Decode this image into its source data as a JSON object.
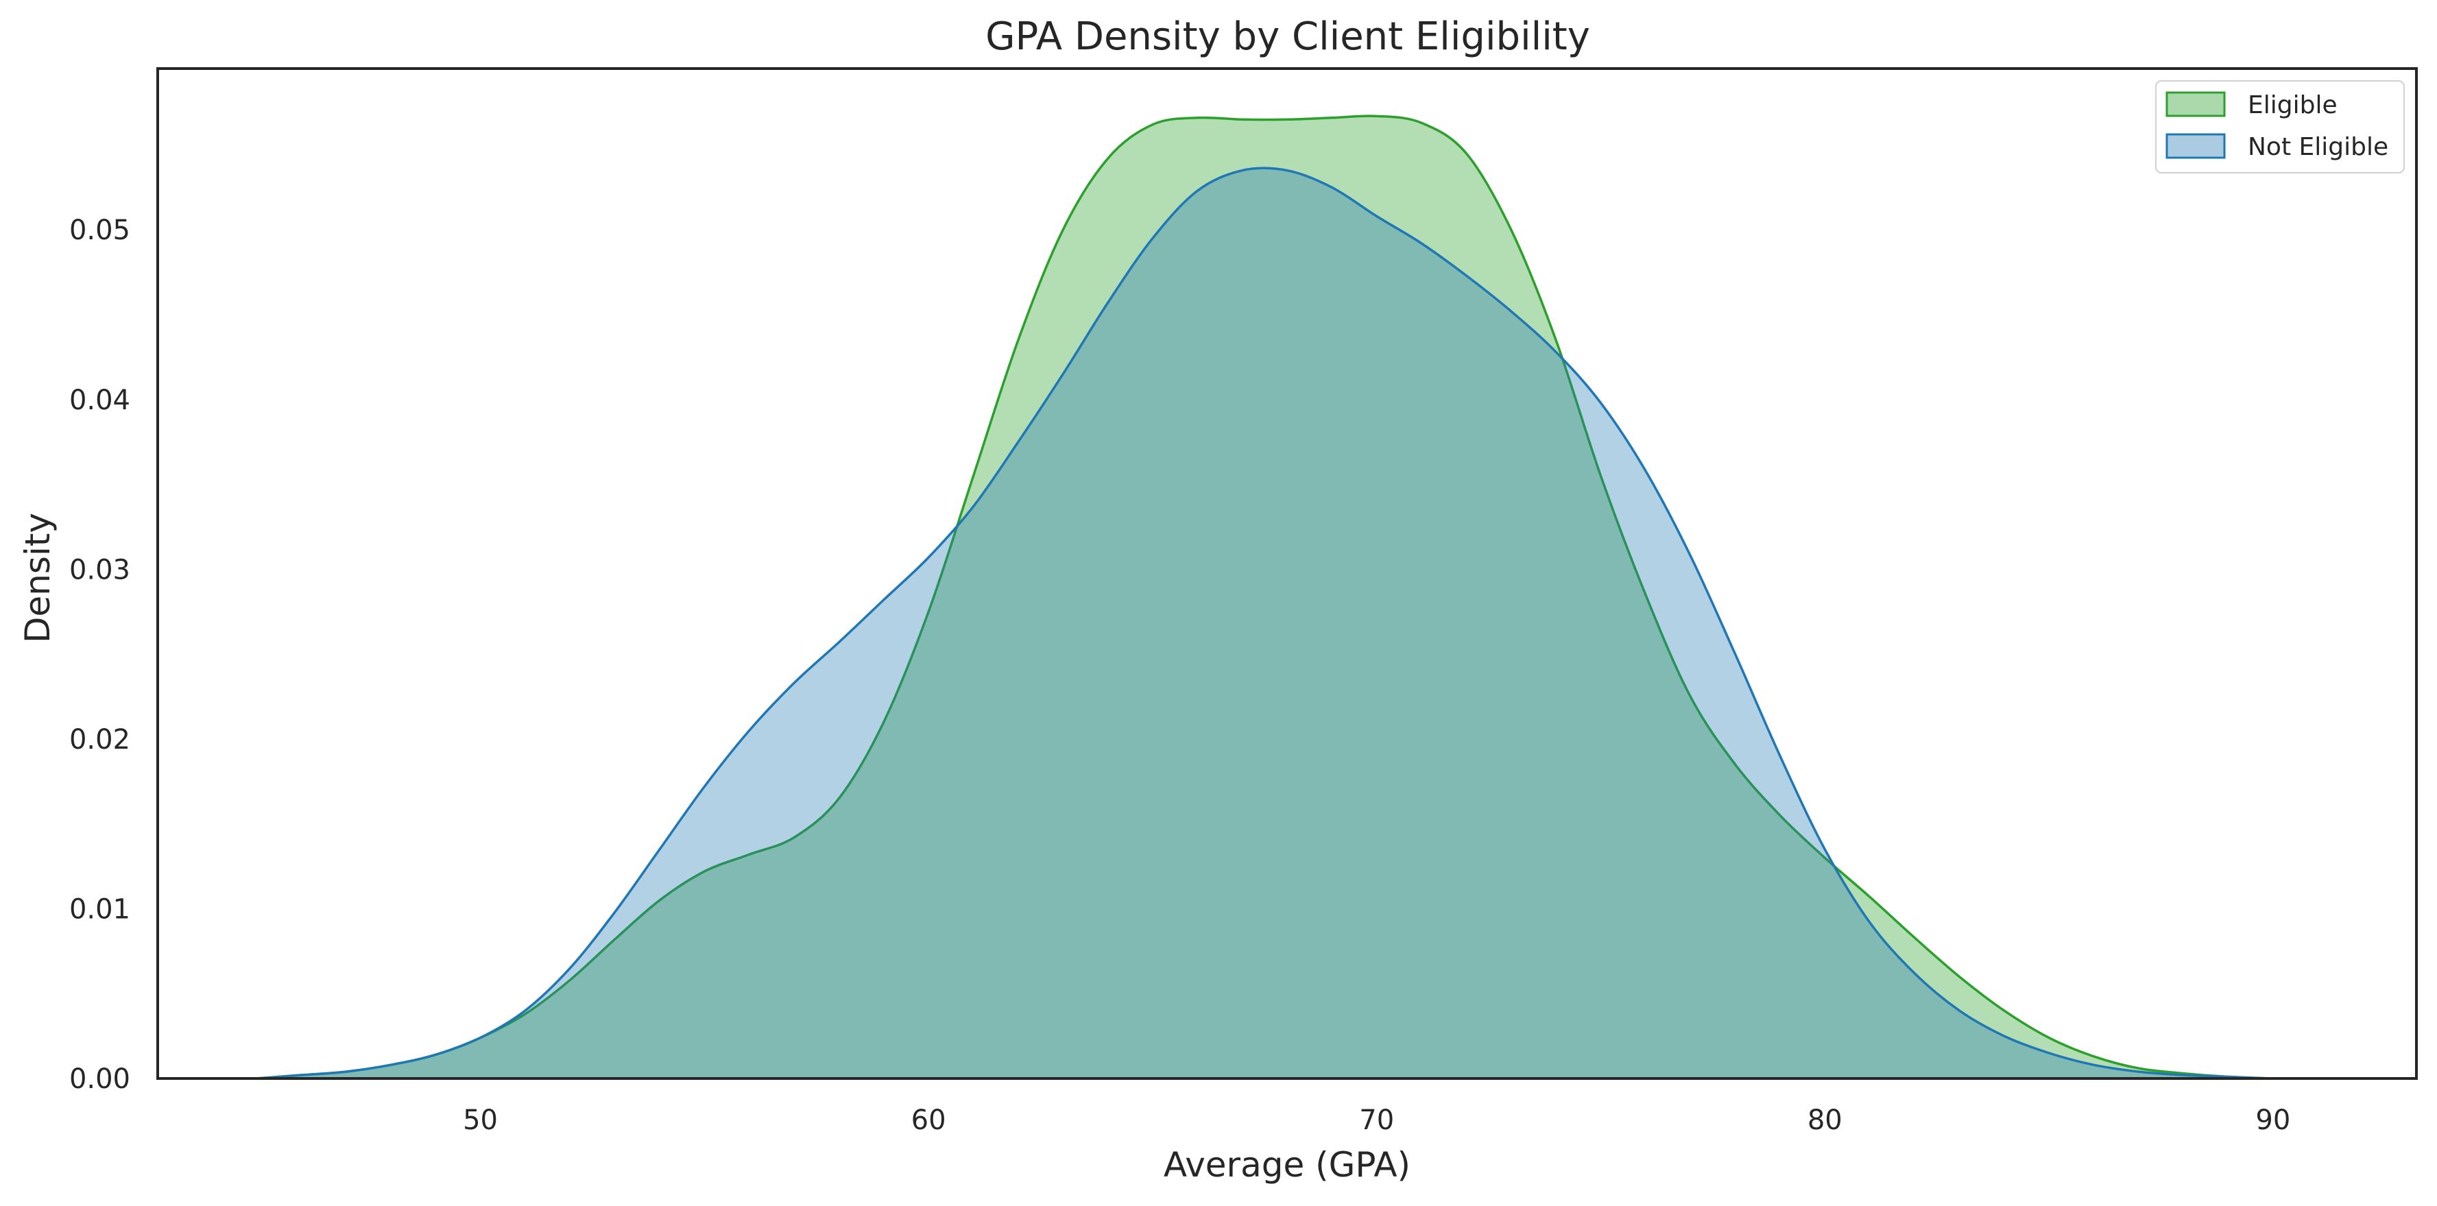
{
  "chart_data": {
    "type": "area",
    "title": "GPA Density by Client Eligibility",
    "xlabel": "Average (GPA)",
    "ylabel": "Density",
    "xlim": [
      42.8,
      93.2
    ],
    "ylim": [
      0,
      0.0595
    ],
    "x_ticks": [
      50,
      60,
      70,
      80,
      90
    ],
    "y_ticks": [
      0.0,
      0.01,
      0.02,
      0.03,
      0.04,
      0.05
    ],
    "x_tick_labels": [
      "50",
      "60",
      "70",
      "80",
      "90"
    ],
    "y_tick_labels": [
      "0.00",
      "0.01",
      "0.02",
      "0.03",
      "0.04",
      "0.05"
    ],
    "grid": false,
    "legend_position": "top-right",
    "x": [
      45,
      46,
      47,
      48,
      49,
      50,
      51,
      52,
      53,
      54,
      55,
      56,
      57,
      58,
      59,
      60,
      61,
      62,
      63,
      64,
      65,
      66,
      67,
      68,
      69,
      70,
      71,
      72,
      73,
      74,
      75,
      76,
      77,
      78,
      79,
      80,
      81,
      82,
      83,
      84,
      85,
      86,
      87,
      88,
      89,
      90,
      91
    ],
    "series": [
      {
        "name": "Eligible",
        "color": "#2ca02c",
        "fill": "#2ca02c",
        "fill_opacity": 0.36,
        "values": [
          0.0,
          0.0002,
          0.0004,
          0.0008,
          0.0014,
          0.0024,
          0.0038,
          0.0058,
          0.0082,
          0.0105,
          0.0122,
          0.0132,
          0.0142,
          0.0165,
          0.021,
          0.0275,
          0.0355,
          0.0435,
          0.05,
          0.0542,
          0.0562,
          0.0566,
          0.0565,
          0.0565,
          0.0566,
          0.0567,
          0.0563,
          0.0545,
          0.05,
          0.0435,
          0.0355,
          0.0285,
          0.0225,
          0.0185,
          0.0155,
          0.013,
          0.0107,
          0.0083,
          0.006,
          0.004,
          0.0024,
          0.0013,
          0.0006,
          0.0003,
          0.0001,
          0.0,
          0.0
        ]
      },
      {
        "name": "Not Eligible",
        "color": "#1f77b4",
        "fill": "#1f77b4",
        "fill_opacity": 0.34,
        "values": [
          0.0,
          0.0002,
          0.0004,
          0.0008,
          0.0014,
          0.0024,
          0.004,
          0.0065,
          0.0098,
          0.0135,
          0.0172,
          0.0205,
          0.0233,
          0.0257,
          0.0282,
          0.0307,
          0.0337,
          0.0375,
          0.0415,
          0.0457,
          0.0495,
          0.0523,
          0.0535,
          0.0535,
          0.0525,
          0.0508,
          0.0492,
          0.0473,
          0.0452,
          0.0428,
          0.0398,
          0.0358,
          0.0308,
          0.025,
          0.019,
          0.0135,
          0.0092,
          0.0062,
          0.004,
          0.0025,
          0.0015,
          0.0008,
          0.0004,
          0.0002,
          0.0001,
          0.0,
          0.0
        ]
      }
    ]
  }
}
